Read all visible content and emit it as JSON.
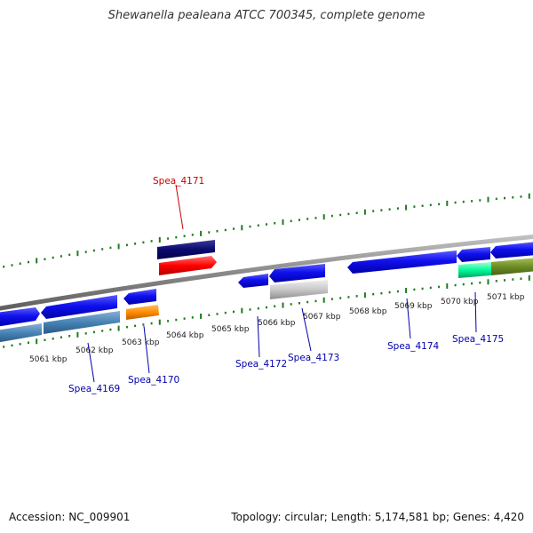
{
  "title": "Shewanella pealeana ATCC 700345, complete genome",
  "colors": {
    "backbone": "#8a8a8a",
    "tick": "#1f7a1f",
    "label_gene": "#0000aa",
    "label_highlight": "#cc0000"
  },
  "kbp_labels": [
    "5061 kbp",
    "5062 kbp",
    "5063 kbp",
    "5064 kbp",
    "5065 kbp",
    "5066 kbp",
    "5067 kbp",
    "5068 kbp",
    "5069 kbp",
    "5070 kbp",
    "5071 kbp"
  ],
  "genes": [
    {
      "label": "Spea_4169",
      "highlight": false
    },
    {
      "label": "Spea_4170",
      "highlight": false
    },
    {
      "label": "Spea_4171",
      "highlight": true
    },
    {
      "label": "Spea_4172",
      "highlight": false
    },
    {
      "label": "Spea_4173",
      "highlight": false
    },
    {
      "label": "Spea_4174",
      "highlight": false
    },
    {
      "label": "Spea_4175",
      "highlight": false
    }
  ],
  "footer": {
    "accession": "Accession: NC_009901",
    "summary": "Topology: circular; Length: 5,174,581 bp; Genes: 4,420"
  }
}
